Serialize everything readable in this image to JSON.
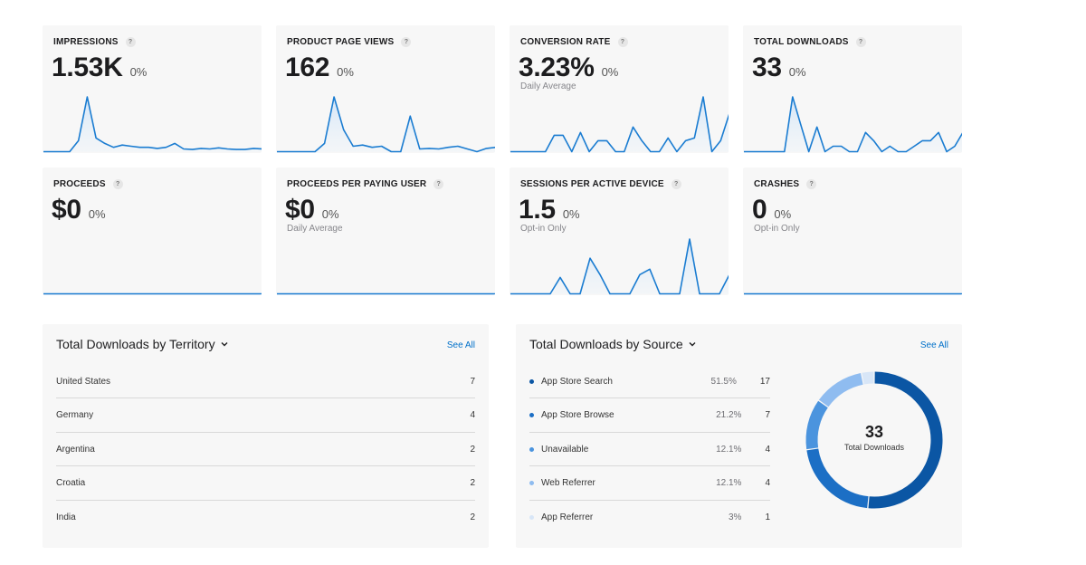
{
  "metrics": [
    {
      "label": "IMPRESSIONS",
      "value": "1.53K",
      "change": "0%",
      "sub": "",
      "spark": [
        0,
        0,
        0,
        0,
        0.2,
        1.0,
        0.25,
        0.15,
        0.08,
        0.12,
        0.1,
        0.08,
        0.08,
        0.06,
        0.08,
        0.15,
        0.05,
        0.04,
        0.06,
        0.05,
        0.07,
        0.05,
        0.04,
        0.04,
        0.06,
        0.05
      ]
    },
    {
      "label": "PRODUCT PAGE VIEWS",
      "value": "162",
      "change": "0%",
      "sub": "",
      "spark": [
        0,
        0,
        0,
        0,
        0,
        0.15,
        1.0,
        0.4,
        0.1,
        0.12,
        0.08,
        0.1,
        0,
        0,
        0.65,
        0.05,
        0.06,
        0.05,
        0.08,
        0.1,
        0.05,
        0,
        0.06,
        0.08
      ]
    },
    {
      "label": "CONVERSION RATE",
      "value": "3.23%",
      "change": "0%",
      "sub": "Daily Average",
      "spark": [
        0,
        0,
        0,
        0,
        0,
        0.3,
        0.3,
        0,
        0.35,
        0,
        0.2,
        0.2,
        0,
        0,
        0.45,
        0.2,
        0,
        0,
        0.25,
        0,
        0.2,
        0.25,
        1.0,
        0,
        0.2,
        0.7
      ]
    },
    {
      "label": "TOTAL DOWNLOADS",
      "value": "33",
      "change": "0%",
      "sub": "",
      "spark": [
        0,
        0,
        0,
        0,
        0,
        0,
        1.0,
        0.5,
        0,
        0.45,
        0,
        0.1,
        0.1,
        0,
        0,
        0.35,
        0.2,
        0,
        0.1,
        0,
        0,
        0.1,
        0.2,
        0.2,
        0.35,
        0,
        0.1,
        0.35
      ]
    },
    {
      "label": "PROCEEDS",
      "value": "$0",
      "change": "0%",
      "sub": "",
      "spark": []
    },
    {
      "label": "PROCEEDS PER PAYING USER",
      "value": "$0",
      "change": "0%",
      "sub": "Daily Average",
      "spark": []
    },
    {
      "label": "SESSIONS PER ACTIVE DEVICE",
      "value": "1.5",
      "change": "0%",
      "sub": "Opt-in Only",
      "spark": [
        0,
        0,
        0,
        0,
        0,
        0.3,
        0,
        0,
        0.65,
        0.35,
        0,
        0,
        0,
        0.35,
        0.45,
        0,
        0,
        0,
        1.0,
        0,
        0,
        0,
        0.35
      ]
    },
    {
      "label": "CRASHES",
      "value": "0",
      "change": "0%",
      "sub": "Opt-in Only",
      "spark": []
    }
  ],
  "territory": {
    "title": "Total Downloads by Territory",
    "see_all": "See All",
    "rows": [
      {
        "name": "United States",
        "value": "7"
      },
      {
        "name": "Germany",
        "value": "4"
      },
      {
        "name": "Argentina",
        "value": "2"
      },
      {
        "name": "Croatia",
        "value": "2"
      },
      {
        "name": "India",
        "value": "2"
      }
    ]
  },
  "source": {
    "title": "Total Downloads by Source",
    "see_all": "See All",
    "rows": [
      {
        "name": "App Store Search",
        "share": "51.5%",
        "value": "17",
        "color": "#0b56a4"
      },
      {
        "name": "App Store Browse",
        "share": "21.2%",
        "value": "7",
        "color": "#1c6fc5"
      },
      {
        "name": "Unavailable",
        "share": "12.1%",
        "value": "4",
        "color": "#4b94de"
      },
      {
        "name": "Web Referrer",
        "share": "12.1%",
        "value": "4",
        "color": "#8fbcf0"
      },
      {
        "name": "App Referrer",
        "share": "3%",
        "value": "1",
        "color": "#d8e6f7"
      }
    ],
    "donut_values": [
      17,
      7,
      4,
      4,
      1
    ],
    "total": "33",
    "total_caption": "Total Downloads"
  },
  "colors": {
    "accent": "#0070c9",
    "spark_line": "#1a7cd1",
    "card_bg": "#f7f7f7"
  }
}
